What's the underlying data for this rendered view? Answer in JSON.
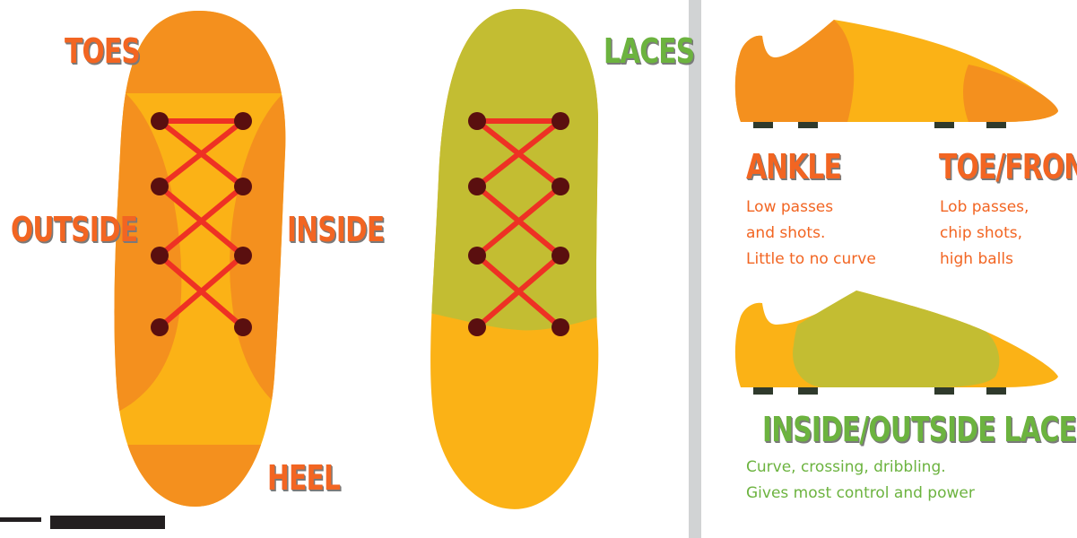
{
  "labels": {
    "toes": "TOES",
    "outside": "OUTSIDE",
    "inside": "INSIDE",
    "heel": "HEEL",
    "laces": "LACES"
  },
  "sections": {
    "ankle": {
      "title": "ANKLE",
      "lines": [
        "Low passes",
        "and shots.",
        "Little to no curve"
      ]
    },
    "toe_front": {
      "title": "TOE/FRONT",
      "lines": [
        "Lob passes,",
        "chip shots,",
        "high balls"
      ]
    },
    "inside_outside_laces": {
      "title": "INSIDE/OUTSIDE LACES",
      "lines": [
        "Curve, crossing, dribbling.",
        "Gives most control and power"
      ]
    }
  },
  "colors": {
    "dark_orange": "#f4901e",
    "yellow": "#fbb216",
    "olive": "#c3bd32",
    "lace_red": "#ee3124",
    "eyelet": "#5a0f0f",
    "text_orange": "#f26522",
    "text_green": "#6cb33f",
    "divider": "#d1d3d4",
    "stud": "#2f3a2c"
  }
}
